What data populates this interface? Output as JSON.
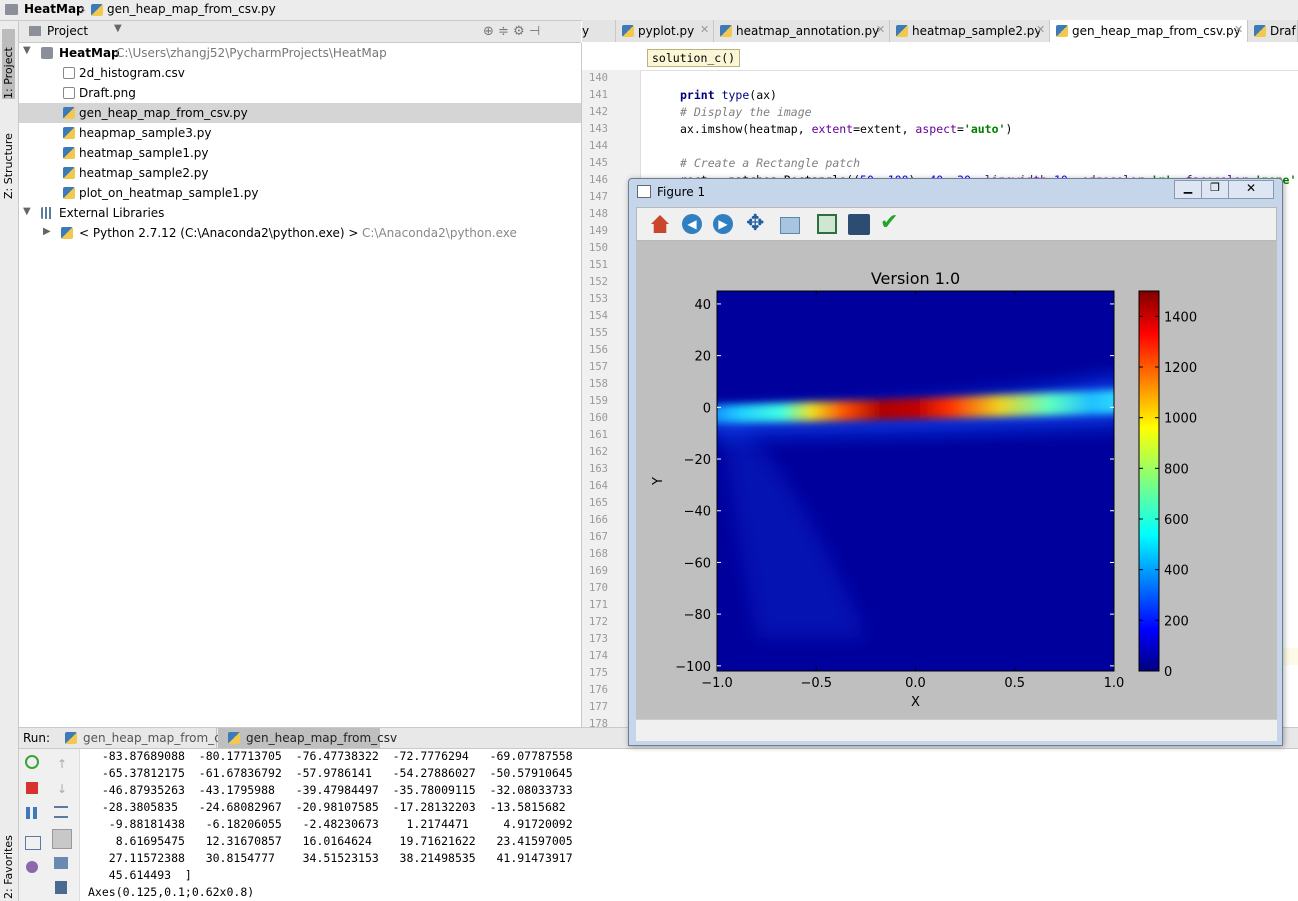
{
  "breadcrumb": [
    "HeatMap",
    "gen_heap_map_from_csv.py"
  ],
  "side_tabs": [
    "1: Project",
    "Z: Structure",
    "2: Favorites"
  ],
  "project_panel": {
    "title": "Project",
    "root": {
      "name": "HeatMap",
      "path": "C:\\Users\\zhangj52\\PycharmProjects\\HeatMap"
    },
    "files": [
      "2d_histogram.csv",
      "Draft.png",
      "gen_heap_map_from_csv.py",
      "heapmap_sample3.py",
      "heatmap_sample1.py",
      "heatmap_sample2.py",
      "plot_on_heatmap_sample1.py"
    ],
    "external": "External Libraries",
    "python": {
      "name": "< Python 2.7.12 (C:\\Anaconda2\\python.exe) >",
      "path": "C:\\Anaconda2\\python.exe"
    }
  },
  "editor_tabs": [
    "y",
    "pyplot.py",
    "heatmap_annotation.py",
    "heatmap_sample2.py",
    "gen_heap_map_from_csv.py",
    "Draf"
  ],
  "scope_hint": "solution_c()",
  "line_numbers": [
    140,
    141,
    142,
    143,
    144,
    145,
    146,
    147,
    148,
    149,
    150,
    151,
    152,
    153,
    154,
    155,
    156,
    157,
    158,
    159,
    160,
    161,
    162,
    163,
    164,
    165,
    166,
    167,
    168,
    169,
    170,
    171,
    172,
    173,
    174,
    175,
    176,
    177,
    178
  ],
  "code_lines": [
    {
      "line": 141,
      "segments": [
        {
          "text": "print",
          "kind": "keyword"
        },
        {
          "text": " ",
          "kind": "plain"
        },
        {
          "text": "type",
          "kind": "builtin"
        },
        {
          "text": "(ax)",
          "kind": "plain"
        }
      ]
    },
    {
      "line": 142,
      "segments": [
        {
          "text": "# Display the image",
          "kind": "comment"
        }
      ]
    },
    {
      "line": 143,
      "segments": [
        {
          "text": "ax.imshow(heatmap, ",
          "kind": "plain"
        },
        {
          "text": "extent",
          "kind": "param"
        },
        {
          "text": "=extent, ",
          "kind": "plain"
        },
        {
          "text": "aspect",
          "kind": "param"
        },
        {
          "text": "=",
          "kind": "plain"
        },
        {
          "text": "'auto'",
          "kind": "string"
        },
        {
          "text": ")",
          "kind": "plain"
        }
      ]
    },
    {
      "line": 145,
      "segments": [
        {
          "text": "# Create a Rectangle patch",
          "kind": "comment"
        }
      ]
    },
    {
      "line": 146,
      "segments": [
        {
          "text": "rect = patches.Rectangle((",
          "kind": "plain"
        },
        {
          "text": "50",
          "kind": "number"
        },
        {
          "text": ", ",
          "kind": "plain"
        },
        {
          "text": "100",
          "kind": "number"
        },
        {
          "text": "), ",
          "kind": "plain"
        },
        {
          "text": "40",
          "kind": "number"
        },
        {
          "text": ", ",
          "kind": "plain"
        },
        {
          "text": "30",
          "kind": "number"
        },
        {
          "text": ", ",
          "kind": "plain"
        },
        {
          "text": "linewidth",
          "kind": "param"
        },
        {
          "text": "=",
          "kind": "plain"
        },
        {
          "text": "10",
          "kind": "number"
        },
        {
          "text": ", ",
          "kind": "plain"
        },
        {
          "text": "edgecolor",
          "kind": "param"
        },
        {
          "text": "=",
          "kind": "plain"
        },
        {
          "text": "'r'",
          "kind": "string"
        },
        {
          "text": ", ",
          "kind": "plain"
        },
        {
          "text": "facecolor",
          "kind": "param"
        },
        {
          "text": "=",
          "kind": "plain"
        },
        {
          "text": "'none'",
          "kind": "string"
        }
      ]
    }
  ],
  "current_line": 174,
  "figure_window": {
    "title": "Figure 1"
  },
  "chart_data": {
    "type": "heatmap",
    "title": "Version 1.0",
    "xlabel": "X",
    "ylabel": "Y",
    "xlim": [
      -1,
      1
    ],
    "ylim": [
      -102,
      45
    ],
    "xticks": [
      {
        "value": -1,
        "label": "−1.0"
      },
      {
        "value": -0.5,
        "label": "−0.5"
      },
      {
        "value": 0,
        "label": "0.0"
      },
      0.5,
      {
        "value": 1,
        "label": "1.0"
      }
    ],
    "yticks": [
      {
        "value": -100,
        "label": "−100"
      },
      {
        "value": -80,
        "label": "−80"
      },
      {
        "value": -60,
        "label": "−60"
      },
      {
        "value": -40,
        "label": "−40"
      },
      {
        "value": -20,
        "label": "−20"
      },
      0,
      20,
      40
    ],
    "colorbar": {
      "lim": [
        0,
        1500
      ],
      "ticks": [
        0,
        200,
        400,
        600,
        800,
        1000,
        1200,
        1400
      ]
    }
  },
  "run": {
    "label": "Run:",
    "tabs": [
      "gen_heap_map_from_csv",
      "gen_heap_map_from_csv"
    ],
    "output": [
      "  -83.87689088  -80.17713705  -76.47738322  -72.7776294   -69.07787558",
      "  -65.37812175  -61.67836792  -57.9786141   -54.27886027  -50.57910645",
      "  -46.87935263  -43.1795988   -39.47984497  -35.78009115  -32.08033733",
      "  -28.3805835   -24.68082967  -20.98107585  -17.28132203  -13.5815682",
      "   -9.88181438   -6.18206055   -2.48230673    1.2174471     4.91720092",
      "    8.61695475   12.31670857   16.0164624    19.71621622   23.41597005",
      "   27.11572388   30.8154777    34.51523153   38.21498535   41.91473917",
      "   45.614493  ]",
      "Axes(0.125,0.1;0.62x0.8)"
    ]
  }
}
